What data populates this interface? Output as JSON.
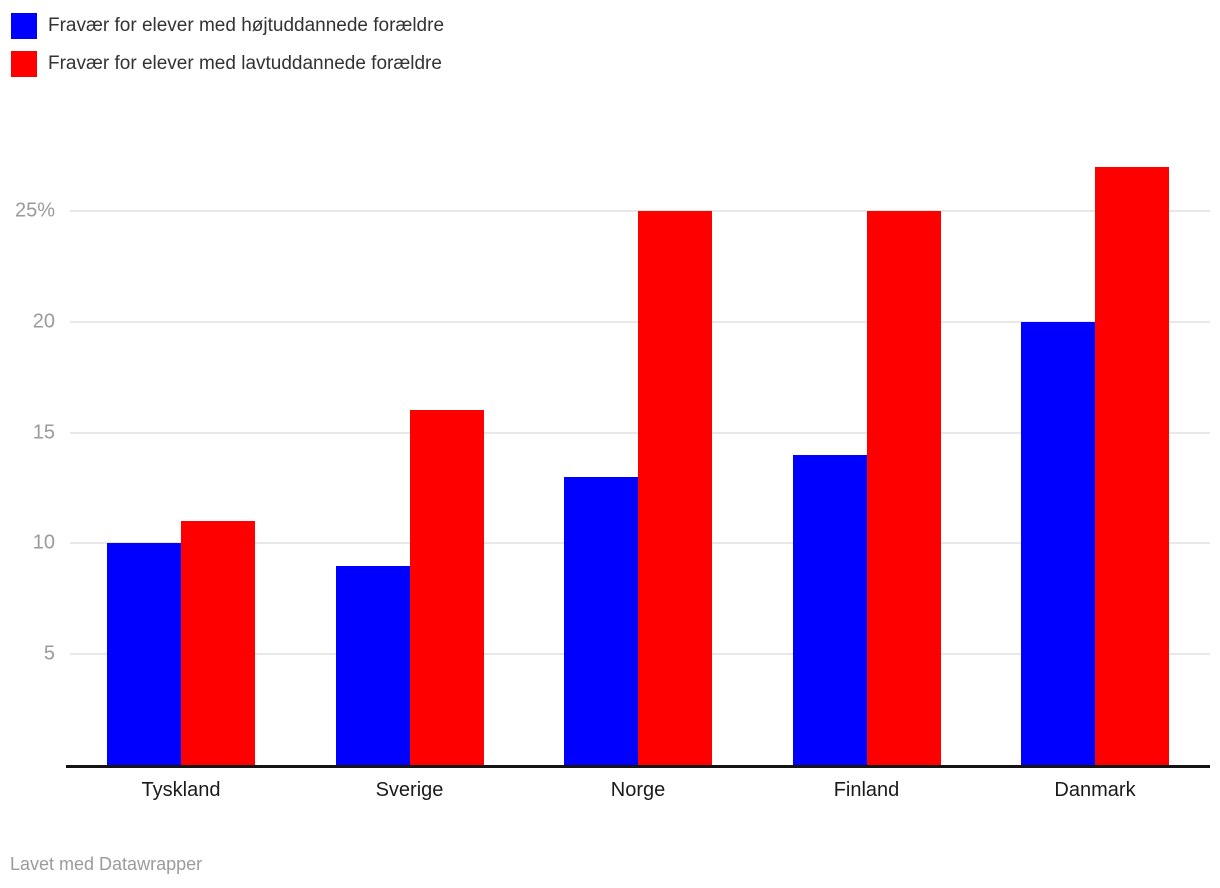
{
  "legend": {
    "items": [
      {
        "label": "Fravær for elever med højtuddannede forældre",
        "color": "#0000ff"
      },
      {
        "label": "Fravær for elever med lavtuddannede forældre",
        "color": "#ff0000"
      }
    ]
  },
  "chart_data": {
    "type": "bar",
    "title": "",
    "categories": [
      "Tyskland",
      "Sverige",
      "Norge",
      "Finland",
      "Danmark"
    ],
    "series": [
      {
        "name": "Fravær for elever med højtuddannede forældre",
        "color": "#0000ff",
        "values": [
          10,
          9,
          13,
          14,
          20
        ]
      },
      {
        "name": "Fravær for elever med lavtuddannede forældre",
        "color": "#ff0000",
        "values": [
          11,
          16,
          25,
          25,
          27
        ]
      }
    ],
    "value_unit": "%",
    "ylim": [
      0,
      28
    ],
    "yticks": [
      {
        "value": 5,
        "label": "5"
      },
      {
        "value": 10,
        "label": "10"
      },
      {
        "value": 15,
        "label": "15"
      },
      {
        "value": 20,
        "label": "20"
      },
      {
        "value": 25,
        "label": "25%"
      }
    ],
    "grid": true,
    "legend_position": "top-left"
  },
  "footer": {
    "credit": "Lavet med Datawrapper"
  },
  "colors": {
    "background": "#ffffff",
    "axis": "#141414",
    "gridline": "#e8e8e8",
    "tick_label": "#9a9a9a",
    "category_label": "#1a1a1a",
    "legend_label": "#333333",
    "footer_text": "#9b9b9b"
  }
}
